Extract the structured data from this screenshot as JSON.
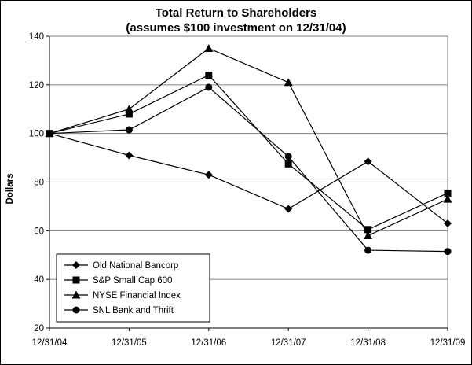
{
  "chart_data": {
    "type": "line",
    "title": "Total Return to Shareholders",
    "subtitle": "(assumes $100 investment on 12/31/04)",
    "xlabel": "",
    "ylabel": "Dollars",
    "categories": [
      "12/31/04",
      "12/31/05",
      "12/31/06",
      "12/31/07",
      "12/31/08",
      "12/31/09"
    ],
    "ylim": [
      20,
      140
    ],
    "yticks": [
      20,
      40,
      60,
      80,
      100,
      120,
      140
    ],
    "grid": "horizontal",
    "legend_position": "bottom-left",
    "series": [
      {
        "name": "Old National Bancorp",
        "marker": "diamond",
        "values": [
          100,
          91,
          83,
          69,
          88.5,
          63
        ]
      },
      {
        "name": "S&P Small Cap 600",
        "marker": "square",
        "values": [
          100,
          108,
          124,
          87.5,
          60.5,
          75.5
        ]
      },
      {
        "name": "NYSE Financial Index",
        "marker": "triangle",
        "values": [
          100,
          110,
          135,
          121,
          58,
          73
        ]
      },
      {
        "name": "SNL Bank and Thrift",
        "marker": "circle",
        "values": [
          100,
          101.5,
          119,
          90.5,
          52,
          51.5
        ]
      }
    ]
  }
}
